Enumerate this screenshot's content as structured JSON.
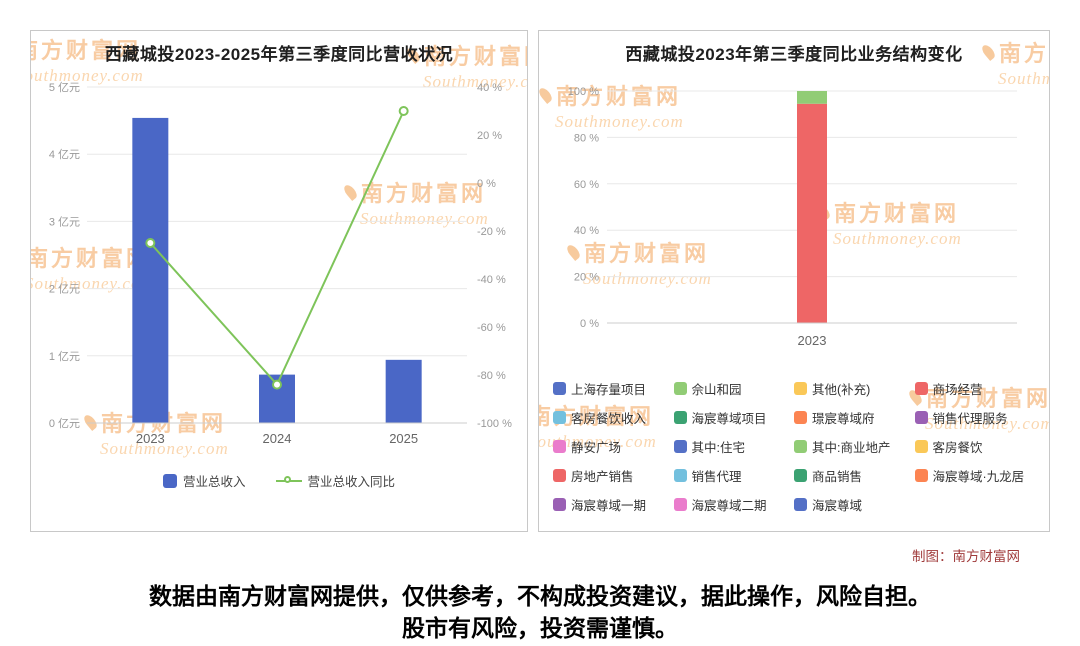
{
  "page": {
    "credit": "制图：南方财富网",
    "disclaimer_line1": "数据由南方财富网提供，仅供参考，不构成投资建议，据此操作，风险自担。",
    "disclaimer_line2": "股市有风险，投资需谨慎。",
    "watermark": {
      "cn": "南方财富网",
      "en": "Southmoney.com"
    }
  },
  "chart_data": [
    {
      "type": "bar",
      "panel": "left",
      "title": "西藏城投2023-2025年第三季度同比营收状况",
      "categories": [
        "2023",
        "2024",
        "2025"
      ],
      "series": [
        {
          "name": "营业总收入",
          "type": "bar",
          "axis": "left",
          "unit": "亿元",
          "values": [
            4.54,
            0.72,
            0.94
          ],
          "color": "#4a67c6"
        },
        {
          "name": "营业总收入同比",
          "type": "line",
          "axis": "right",
          "unit": "%",
          "values": [
            -25,
            -84,
            30
          ],
          "color": "#7ec45a"
        }
      ],
      "y_left": {
        "min": 0,
        "max": 5,
        "tick_labels": [
          "0 亿元",
          "1 亿元",
          "2 亿元",
          "3 亿元",
          "4 亿元",
          "5 亿元"
        ]
      },
      "y_right": {
        "min": -100,
        "max": 40,
        "tick_labels": [
          "40 %",
          "20 %",
          "0 %",
          "-20 %",
          "-40 %",
          "-60 %",
          "-80 %",
          "-100 %"
        ]
      },
      "grid": true,
      "legend_position": "bottom",
      "legend": [
        {
          "label": "营业总收入",
          "marker": "square",
          "color": "#4a67c6"
        },
        {
          "label": "营业总收入同比",
          "marker": "line-circle",
          "color": "#7ec45a"
        }
      ]
    },
    {
      "type": "stacked-bar",
      "panel": "right",
      "title": "西藏城投2023年第三季度同比业务结构变化",
      "categories": [
        "2023"
      ],
      "segments": [
        {
          "name": "房地产销售",
          "value": 94.5,
          "color": "#ee6666"
        },
        {
          "name": "其中:商业地产",
          "value": 5.5,
          "color": "#91cc75"
        }
      ],
      "y_axis": {
        "min": 0,
        "max": 100,
        "tick_labels": [
          "0 %",
          "20 %",
          "40 %",
          "60 %",
          "80 %",
          "100 %"
        ]
      },
      "grid": true,
      "legend_position": "bottom",
      "legend": [
        {
          "label": "上海存量项目",
          "color": "#5470c6"
        },
        {
          "label": "佘山和园",
          "color": "#91cc75"
        },
        {
          "label": "其他(补充)",
          "color": "#fac858"
        },
        {
          "label": "商场经营",
          "color": "#ee6666"
        },
        {
          "label": "客房餐饮收入",
          "color": "#73c0de"
        },
        {
          "label": "海宸尊域项目",
          "color": "#3ba272"
        },
        {
          "label": "璟宸尊域府",
          "color": "#fc8452"
        },
        {
          "label": "销售代理服务",
          "color": "#9a60b4"
        },
        {
          "label": "静安广场",
          "color": "#ea7ccc"
        },
        {
          "label": "其中:住宅",
          "color": "#5470c6"
        },
        {
          "label": "其中:商业地产",
          "color": "#91cc75"
        },
        {
          "label": "客房餐饮",
          "color": "#fac858"
        },
        {
          "label": "房地产销售",
          "color": "#ee6666"
        },
        {
          "label": "销售代理",
          "color": "#73c0de"
        },
        {
          "label": "商品销售",
          "color": "#3ba272"
        },
        {
          "label": "海宸尊域·九龙居",
          "color": "#fc8452"
        },
        {
          "label": "海宸尊域一期",
          "color": "#9a60b4"
        },
        {
          "label": "海宸尊域二期",
          "color": "#ea7ccc"
        },
        {
          "label": "海宸尊域",
          "color": "#5470c6"
        }
      ]
    }
  ]
}
